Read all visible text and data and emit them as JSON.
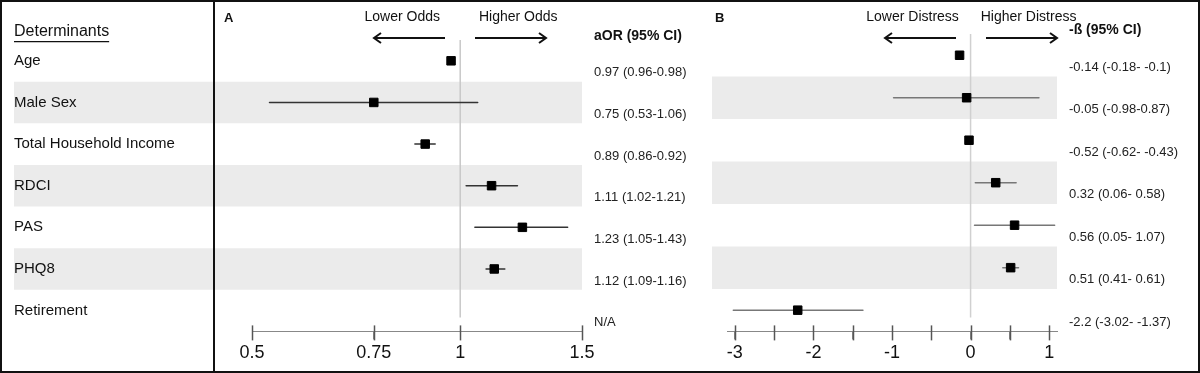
{
  "chart_data": [
    {
      "type": "scatter",
      "orientation": "horizontal",
      "title": "A",
      "ylabel": "Determinants",
      "categories": [
        "Age",
        "Male Sex",
        "Total Household Income",
        "RDCI",
        "PAS",
        "PHQ8",
        "Retirement"
      ],
      "series": [
        {
          "color": "#000000",
          "values": [
            0.97,
            0.75,
            0.89,
            1.11,
            1.23,
            1.12,
            null
          ],
          "errors": [
            [
              0.96,
              0.98
            ],
            [
              0.53,
              1.06
            ],
            [
              0.86,
              0.92
            ],
            [
              1.02,
              1.21
            ],
            [
              1.05,
              1.43
            ],
            [
              1.09,
              1.16
            ],
            null
          ]
        }
      ],
      "bands": [
        {
          "axis": "y",
          "from": "Male Sex",
          "to": "Male Sex",
          "color": "#ebebeb"
        },
        {
          "axis": "y",
          "from": "RDCI",
          "to": "RDCI",
          "color": "#ebebeb"
        },
        {
          "axis": "y",
          "from": "PHQ8",
          "to": "PHQ8",
          "color": "#ebebeb"
        }
      ],
      "log": "x",
      "xlim": [
        0.5,
        1.5
      ],
      "xticks": [
        0.5,
        0.75,
        1,
        1.5
      ],
      "ref_lines": [
        {
          "axis": "x",
          "value": 1,
          "color": "#c8c8c8"
        }
      ],
      "annotations": [
        "Lower Odds",
        "Higher Odds",
        "aOR (95% CI)",
        "0.97 (0.96-0.98)",
        "0.75 (0.53-1.06)",
        "0.89 (0.86-0.92)",
        "1.11 (1.02-1.21)",
        "1.23 (1.05-1.43)",
        "1.12 (1.09-1.16)",
        "N/A"
      ],
      "marker": "square",
      "grid": false,
      "legend": false
    },
    {
      "type": "scatter",
      "orientation": "horizontal",
      "title": "B",
      "categories": [
        "Age",
        "Male Sex",
        "Total Household Income",
        "RDCI",
        "PAS",
        "PHQ8",
        "Retirement"
      ],
      "bands": [
        {
          "axis": "y",
          "from": "Male Sex",
          "to": "Male Sex",
          "color": "#ebebeb"
        },
        {
          "axis": "y",
          "from": "RDCI",
          "to": "RDCI",
          "color": "#ebebeb"
        },
        {
          "axis": "y",
          "from": "PHQ8",
          "to": "PHQ8",
          "color": "#ebebeb"
        }
      ],
      "series": [
        {
          "color": "#000000",
          "values": [
            -0.14,
            -0.05,
            -0.02,
            0.32,
            0.56,
            0.51,
            -2.2
          ],
          "errors": [
            [
              -0.18,
              -0.1
            ],
            [
              -0.98,
              0.87
            ],
            null,
            [
              0.06,
              0.58
            ],
            [
              0.05,
              1.07
            ],
            [
              0.41,
              0.61
            ],
            [
              -3.02,
              -1.37
            ]
          ]
        }
      ],
      "xlim": [
        -3.1,
        1.1
      ],
      "xticks": [
        -3,
        {
          "value": -2.5,
          "label": null
        },
        -2,
        {
          "value": -1.5,
          "label": null
        },
        -1,
        {
          "value": -0.5,
          "label": null
        },
        0,
        {
          "value": 0.5,
          "label": null
        },
        1
      ],
      "ref_lines": [
        {
          "axis": "x",
          "value": 0,
          "color": "#d0d0d0"
        }
      ],
      "annotations": [
        "Lower Distress",
        "Higher Distress",
        "-ß (95% CI)",
        "-0.14 (-0.18- -0.1)",
        "-0.05 (-0.98-0.87)",
        "-0.52 (-0.62- -0.43)",
        "0.32 (0.06- 0.58)",
        "0.56 (0.05- 1.07)",
        "0.51 (0.41- 0.61)",
        "-2.2 (-3.02- -1.37)"
      ],
      "tick_labels": "x",
      "marker": "square",
      "grid": false,
      "legend": false
    }
  ]
}
